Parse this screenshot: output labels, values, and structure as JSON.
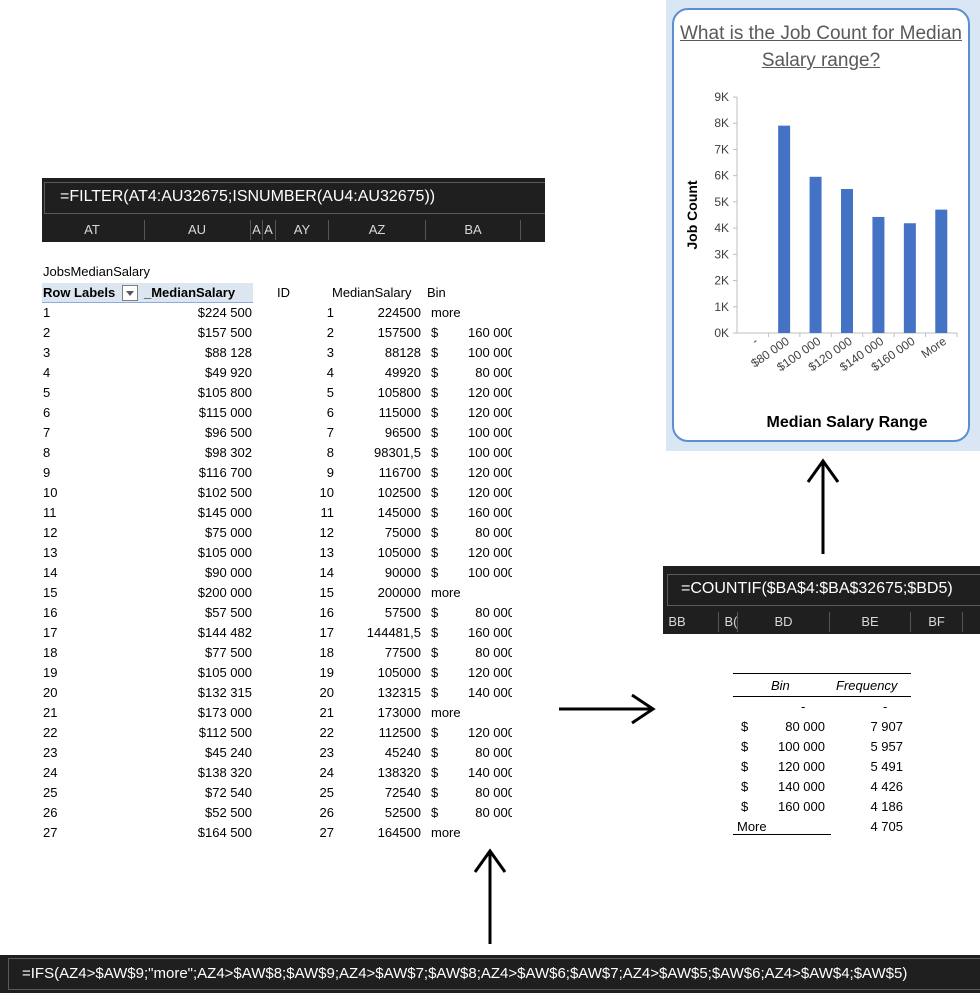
{
  "formulas": {
    "filter": "=FILTER(AT4:AU32675;ISNUMBER(AU4:AU32675))",
    "countif": "=COUNTIF($BA$4:$BA$32675;$BD5)",
    "ifs": "=IFS(AZ4>$AW$9;\"more\";AZ4>$AW$8;$AW$9;AZ4>$AW$7;$AW$8;AZ4>$AW$6;$AW$7;AZ4>$AW$5;$AW$6;AZ4>$AW$4;$AW$5)"
  },
  "columns_left": [
    "AT",
    "AU",
    "A",
    "A",
    "AY",
    "AZ",
    "BA"
  ],
  "columns_right": [
    "BB",
    "B(",
    "BD",
    "BE",
    "BF"
  ],
  "pivot": {
    "name": "JobsMedianSalary",
    "row_labels": "Row Labels",
    "value_header": "_MedianSalary",
    "id_header": "ID",
    "median_header": "MedianSalary",
    "bin_header": "Bin",
    "rows": [
      "1",
      "2",
      "3",
      "4",
      "5",
      "6",
      "7",
      "8",
      "9",
      "10",
      "11",
      "12",
      "13",
      "14",
      "15",
      "16",
      "17",
      "18",
      "19",
      "20",
      "21",
      "22",
      "23",
      "24",
      "25",
      "26",
      "27"
    ],
    "values": [
      "$224 500",
      "$157 500",
      "$88 128",
      "$49 920",
      "$105 800",
      "$115 000",
      "$96 500",
      "$98 302",
      "$116 700",
      "$102 500",
      "$145 000",
      "$75 000",
      "$105 000",
      "$90 000",
      "$200 000",
      "$57 500",
      "$144 482",
      "$77 500",
      "$105 000",
      "$132 315",
      "$173 000",
      "$112 500",
      "$45 240",
      "$138 320",
      "$72 540",
      "$52 500",
      "$164 500"
    ],
    "medians": [
      "224500",
      "157500",
      "88128",
      "49920",
      "105800",
      "115000",
      "96500",
      "98301,5",
      "116700",
      "102500",
      "145000",
      "75000",
      "105000",
      "90000",
      "200000",
      "57500",
      "144481,5",
      "77500",
      "105000",
      "132315",
      "173000",
      "112500",
      "45240",
      "138320",
      "72540",
      "52500",
      "164500"
    ],
    "bins": [
      {
        "d": "",
        "v": "more"
      },
      {
        "d": "$",
        "v": "160 000"
      },
      {
        "d": "$",
        "v": "100 000"
      },
      {
        "d": "$",
        "v": "80 000"
      },
      {
        "d": "$",
        "v": "120 000"
      },
      {
        "d": "$",
        "v": "120 000"
      },
      {
        "d": "$",
        "v": "100 000"
      },
      {
        "d": "$",
        "v": "100 000"
      },
      {
        "d": "$",
        "v": "120 000"
      },
      {
        "d": "$",
        "v": "120 000"
      },
      {
        "d": "$",
        "v": "160 000"
      },
      {
        "d": "$",
        "v": "80 000"
      },
      {
        "d": "$",
        "v": "120 000"
      },
      {
        "d": "$",
        "v": "100 000"
      },
      {
        "d": "",
        "v": "more"
      },
      {
        "d": "$",
        "v": "80 000"
      },
      {
        "d": "$",
        "v": "160 000"
      },
      {
        "d": "$",
        "v": "80 000"
      },
      {
        "d": "$",
        "v": "120 000"
      },
      {
        "d": "$",
        "v": "140 000"
      },
      {
        "d": "",
        "v": "more"
      },
      {
        "d": "$",
        "v": "120 000"
      },
      {
        "d": "$",
        "v": "80 000"
      },
      {
        "d": "$",
        "v": "140 000"
      },
      {
        "d": "$",
        "v": "80 000"
      },
      {
        "d": "$",
        "v": "80 000"
      },
      {
        "d": "",
        "v": "more"
      }
    ]
  },
  "freq_table": {
    "bin_header": "Bin",
    "freq_header": "Frequency",
    "rows": [
      {
        "d": "",
        "bin": "-",
        "freq": "-"
      },
      {
        "d": "$",
        "bin": "80 000",
        "freq": "7 907"
      },
      {
        "d": "$",
        "bin": "100 000",
        "freq": "5 957"
      },
      {
        "d": "$",
        "bin": "120 000",
        "freq": "5 491"
      },
      {
        "d": "$",
        "bin": "140 000",
        "freq": "4 426"
      },
      {
        "d": "$",
        "bin": "160 000",
        "freq": "4 186"
      },
      {
        "d": "",
        "bin": "More",
        "freq": "4 705"
      }
    ]
  },
  "chart_data": {
    "type": "bar",
    "title": "What is the Job Count for Median Salary range?",
    "xlabel": "Median Salary Range",
    "ylabel": "Job Count",
    "categories": [
      "-",
      "$80 000",
      "$100 000",
      "$120 000",
      "$140 000",
      "$160 000",
      "More"
    ],
    "values": [
      0,
      7907,
      5957,
      5491,
      4426,
      4186,
      4705
    ],
    "ylim": [
      0,
      9000
    ],
    "yticks": [
      "0K",
      "1K",
      "2K",
      "3K",
      "4K",
      "5K",
      "6K",
      "7K",
      "8K",
      "9K"
    ],
    "color": "#4472c4",
    "grid": false,
    "legend": "none"
  },
  "colors": {
    "formula_bar": "#1f1f1f",
    "pivot_header": "#dce6f1",
    "chart_border": "#5b8fd0",
    "bar": "#4472c4"
  }
}
